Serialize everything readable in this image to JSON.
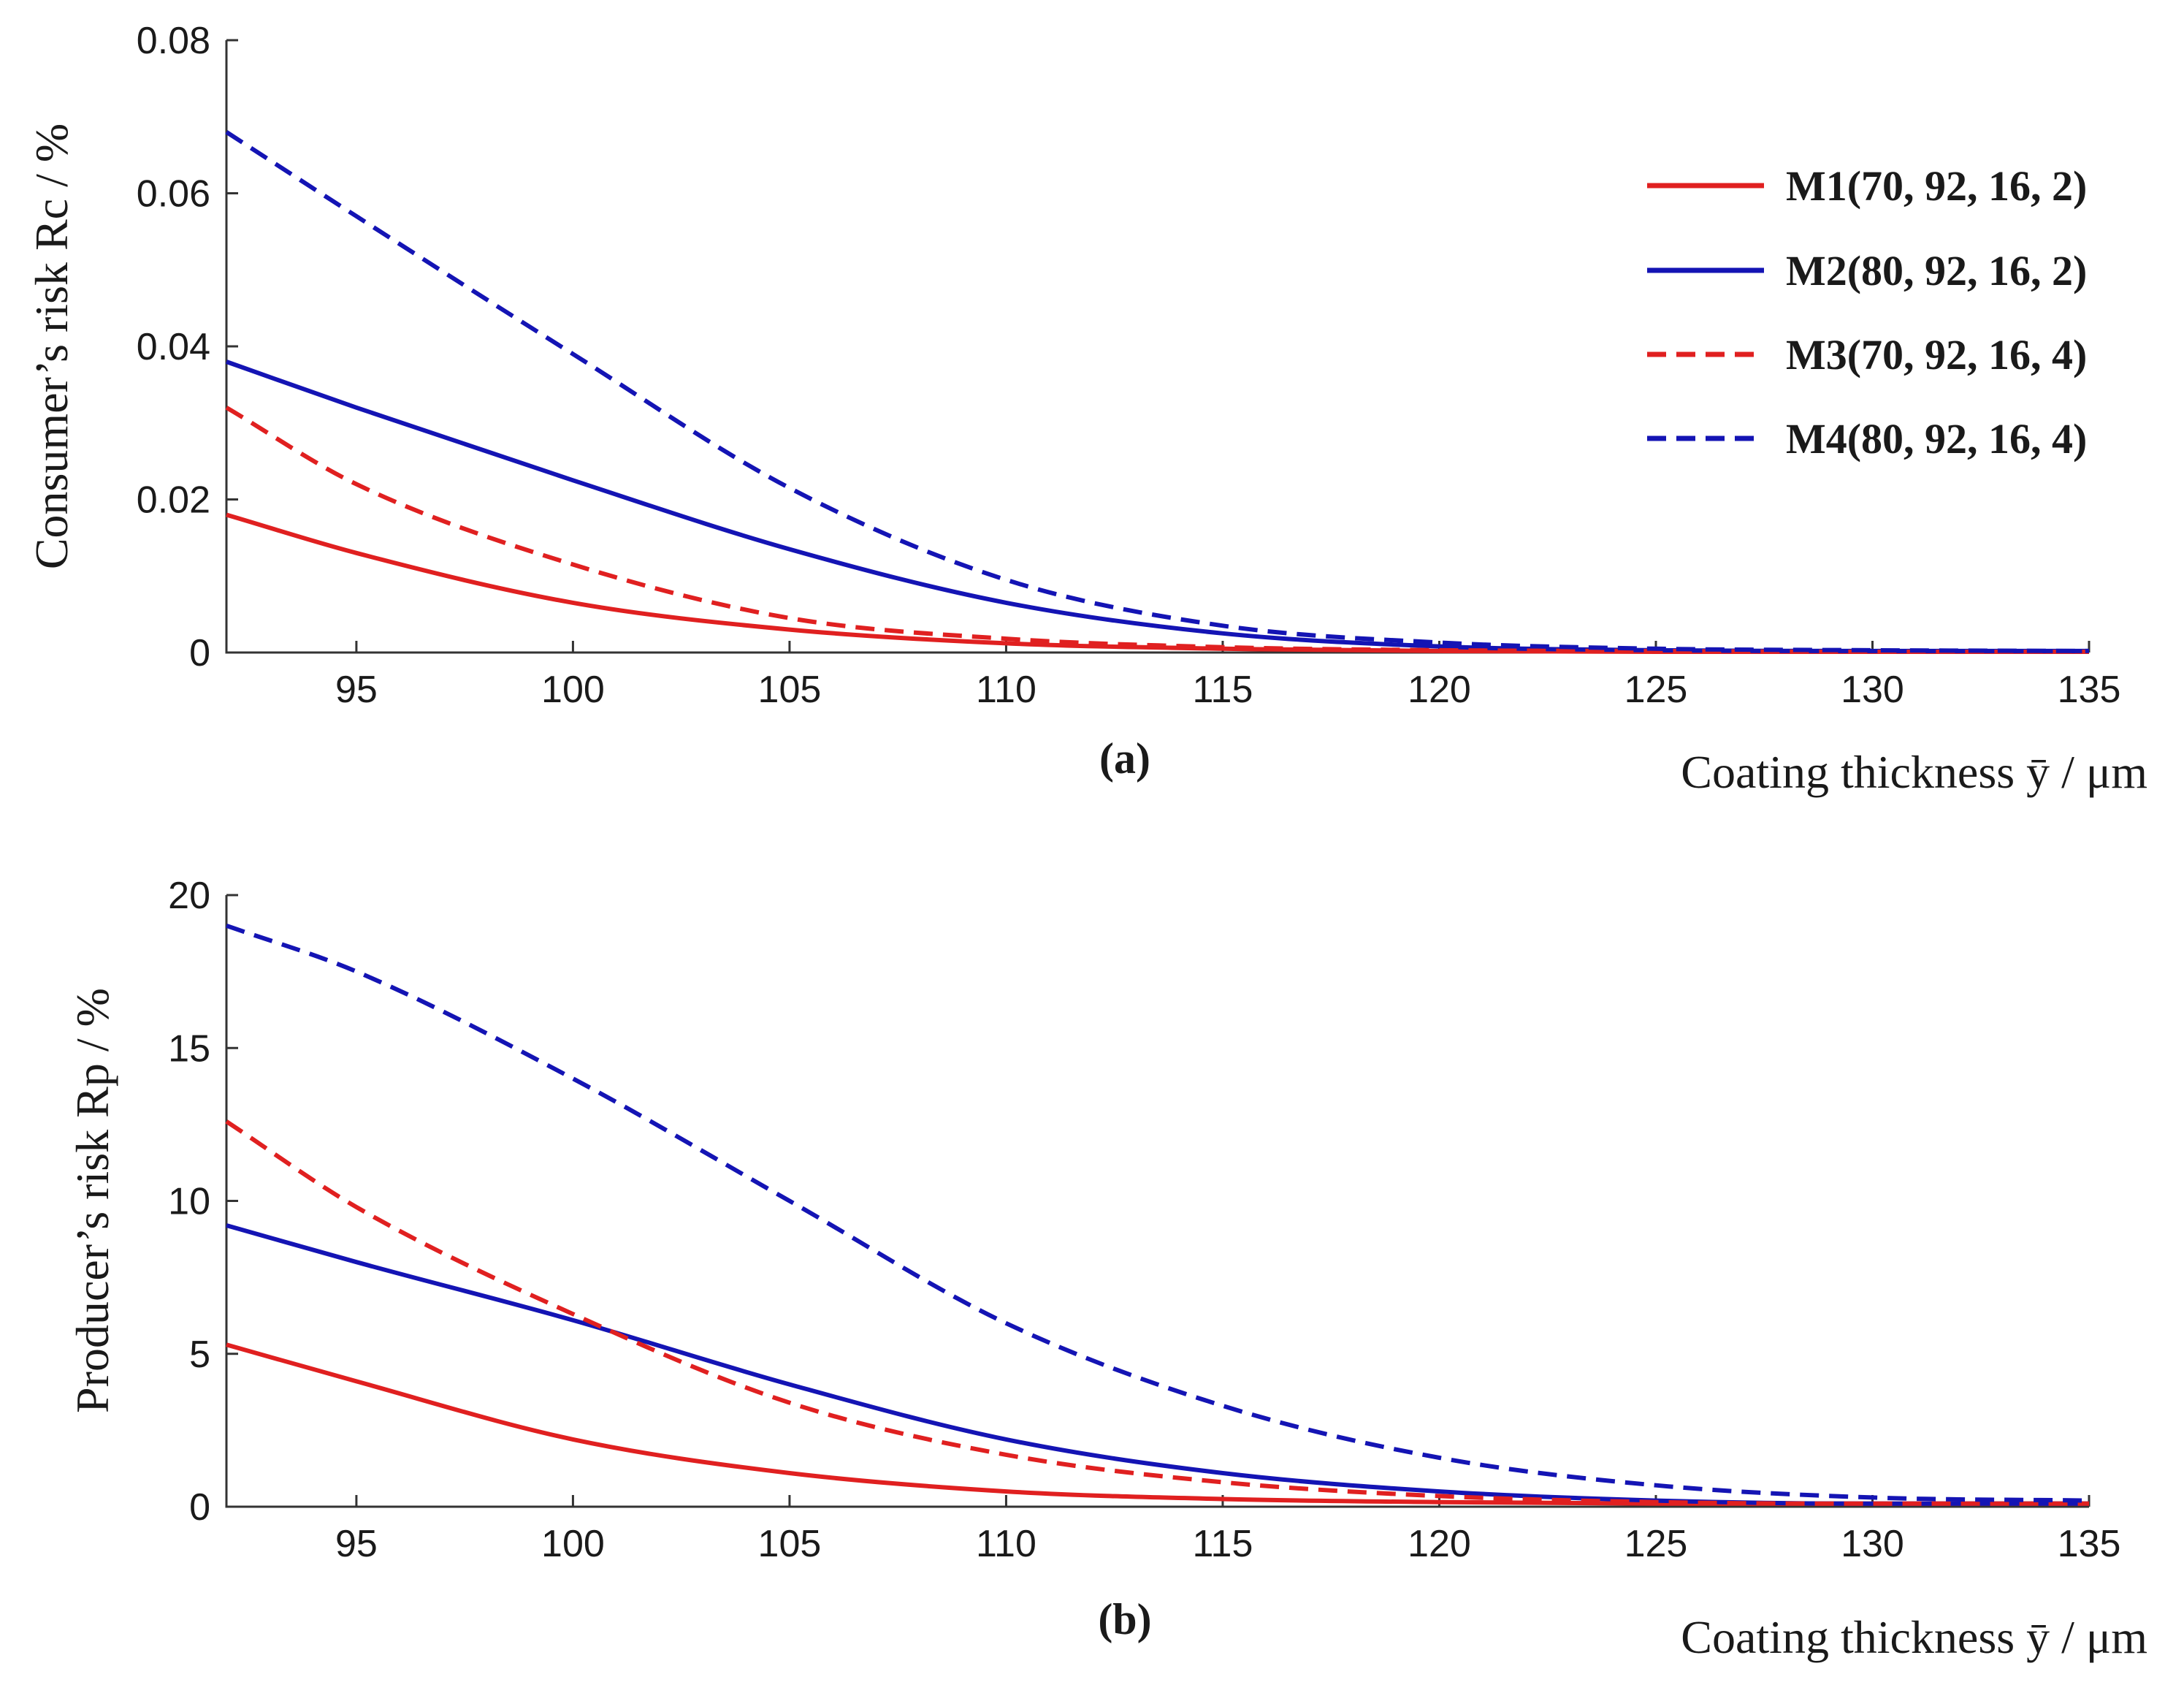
{
  "chart_data": [
    {
      "type": "line",
      "panel_label": "(a)",
      "ylabel": "Consumer’s  risk Rc / %",
      "xlabel": "Coating thickness ȳ / μm",
      "xlim": [
        92,
        135
      ],
      "ylim": [
        0,
        0.08
      ],
      "xticks": [
        95,
        100,
        105,
        110,
        115,
        120,
        125,
        130,
        135
      ],
      "xtick_labels": [
        "95",
        "100",
        "105",
        "110",
        "115",
        "120",
        "125",
        "130",
        "135"
      ],
      "yticks": [
        0,
        0.02,
        0.04,
        0.06,
        0.08
      ],
      "ytick_labels": [
        "0",
        "0.02",
        "0.04",
        "0.06",
        "0.08"
      ],
      "x": [
        92,
        95,
        100,
        105,
        110,
        115,
        120,
        125,
        130,
        135
      ],
      "legend": {
        "position": "top-right",
        "entries": [
          "M1(70, 92, 16, 2)",
          "M2(80, 92, 16, 2)",
          "M3(70, 92, 16, 4)",
          "M4(80, 92, 16, 4)"
        ]
      },
      "series": [
        {
          "name": "M1(70, 92, 16, 2)",
          "color": "#e02020",
          "dash": "solid",
          "values": [
            0.018,
            0.013,
            0.0065,
            0.003,
            0.0012,
            0.0005,
            0.0002,
            0.0001,
            0.0001,
            0.0001
          ]
        },
        {
          "name": "M2(80, 92, 16, 2)",
          "color": "#1414b4",
          "dash": "solid",
          "values": [
            0.038,
            0.032,
            0.0225,
            0.0135,
            0.0065,
            0.0025,
            0.0008,
            0.0003,
            0.0002,
            0.0002
          ]
        },
        {
          "name": "M3(70, 92, 16, 4)",
          "color": "#e02020",
          "dash": "dashed",
          "values": [
            0.032,
            0.022,
            0.0115,
            0.0045,
            0.0018,
            0.0007,
            0.0003,
            0.0002,
            0.0001,
            0.0001
          ]
        },
        {
          "name": "M4(80, 92, 16, 4)",
          "color": "#1414b4",
          "dash": "dashed",
          "values": [
            0.068,
            0.057,
            0.039,
            0.0215,
            0.0095,
            0.0035,
            0.0013,
            0.0005,
            0.0003,
            0.0002
          ]
        }
      ]
    },
    {
      "type": "line",
      "panel_label": "(b)",
      "ylabel": "Producer’s  risk Rp / %",
      "xlabel": "Coating thickness ȳ / μm",
      "xlim": [
        92,
        135
      ],
      "ylim": [
        0,
        20
      ],
      "xticks": [
        95,
        100,
        105,
        110,
        115,
        120,
        125,
        130,
        135
      ],
      "xtick_labels": [
        "95",
        "100",
        "105",
        "110",
        "115",
        "120",
        "125",
        "130",
        "135"
      ],
      "yticks": [
        0,
        5,
        10,
        15,
        20
      ],
      "ytick_labels": [
        "0",
        "5",
        "10",
        "15",
        "20"
      ],
      "x": [
        92,
        95,
        100,
        105,
        110,
        115,
        120,
        125,
        130,
        135
      ],
      "series": [
        {
          "name": "M1(70, 92, 16, 2)",
          "color": "#e02020",
          "dash": "solid",
          "values": [
            5.3,
            4.1,
            2.2,
            1.1,
            0.5,
            0.25,
            0.15,
            0.1,
            0.1,
            0.1
          ]
        },
        {
          "name": "M2(80, 92, 16, 2)",
          "color": "#1414b4",
          "dash": "solid",
          "values": [
            9.2,
            8.0,
            6.1,
            4.0,
            2.2,
            1.1,
            0.5,
            0.2,
            0.1,
            0.1
          ]
        },
        {
          "name": "M3(70, 92, 16, 4)",
          "color": "#e02020",
          "dash": "dashed",
          "values": [
            12.6,
            9.8,
            6.3,
            3.4,
            1.7,
            0.8,
            0.35,
            0.15,
            0.1,
            0.1
          ]
        },
        {
          "name": "M4(80, 92, 16, 4)",
          "color": "#1414b4",
          "dash": "dashed",
          "values": [
            19.0,
            17.5,
            14.0,
            10.0,
            6.0,
            3.3,
            1.6,
            0.7,
            0.3,
            0.2
          ]
        }
      ]
    }
  ]
}
